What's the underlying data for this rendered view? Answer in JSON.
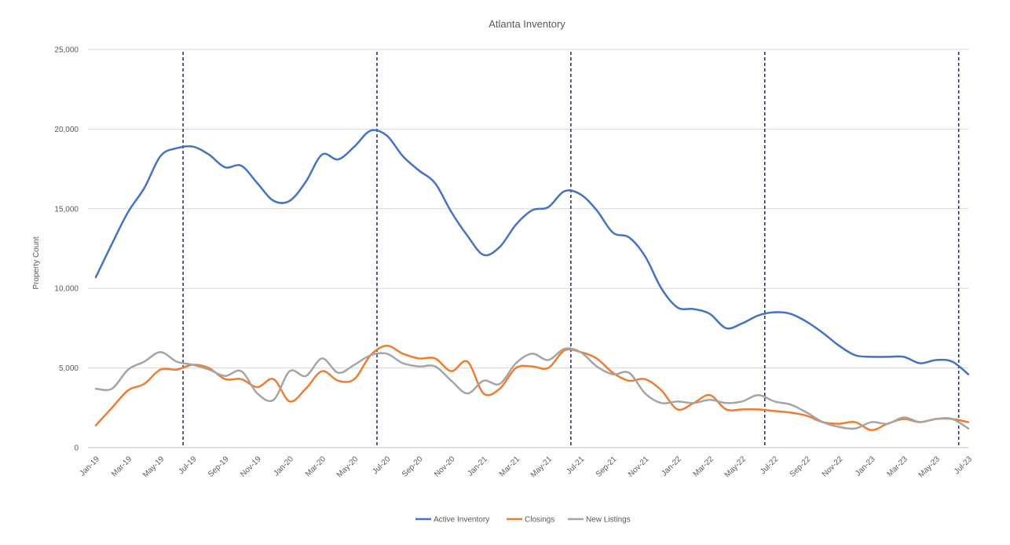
{
  "chart_data": {
    "type": "line",
    "title": "Atlanta Inventory",
    "ylabel": "Property Count",
    "xlabel": "",
    "ylim": [
      0,
      25000
    ],
    "yticks": [
      0,
      5000,
      10000,
      15000,
      20000,
      25000
    ],
    "ytick_labels": [
      "0",
      "5,000",
      "10,000",
      "15,000",
      "20,000",
      "25,000"
    ],
    "grid": true,
    "legend": "bottom",
    "x": [
      "Jan-19",
      "Feb-19",
      "Mar-19",
      "Apr-19",
      "May-19",
      "Jun-19",
      "Jul-19",
      "Aug-19",
      "Sep-19",
      "Oct-19",
      "Nov-19",
      "Dec-19",
      "Jan-20",
      "Feb-20",
      "Mar-20",
      "Apr-20",
      "May-20",
      "Jun-20",
      "Jul-20",
      "Aug-20",
      "Sep-20",
      "Oct-20",
      "Nov-20",
      "Dec-20",
      "Jan-21",
      "Feb-21",
      "Mar-21",
      "Apr-21",
      "May-21",
      "Jun-21",
      "Jul-21",
      "Aug-21",
      "Sep-21",
      "Oct-21",
      "Nov-21",
      "Dec-21",
      "Jan-22",
      "Feb-22",
      "Mar-22",
      "Apr-22",
      "May-22",
      "Jun-22",
      "Jul-22",
      "Aug-22",
      "Sep-22",
      "Oct-22",
      "Nov-22",
      "Dec-22",
      "Jan-23",
      "Feb-23",
      "Mar-23",
      "Apr-23",
      "May-23",
      "Jun-23",
      "Jul-23"
    ],
    "xtick_labels": [
      "Jan-19",
      "Mar-19",
      "May-19",
      "Jul-19",
      "Sep-19",
      "Nov-19",
      "Jan-20",
      "Mar-20",
      "May-20",
      "Jul-20",
      "Sep-20",
      "Nov-20",
      "Jan-21",
      "Mar-21",
      "May-21",
      "Jul-21",
      "Sep-21",
      "Nov-21",
      "Jan-22",
      "Mar-22",
      "May-22",
      "Jul-22",
      "Sep-22",
      "Nov-22",
      "Jan-23",
      "Mar-23",
      "May-23",
      "Jul-23"
    ],
    "vlines": [
      "Jun-19",
      "Jun-20",
      "Jun-21",
      "Jun-22",
      "Jun-23"
    ],
    "series": [
      {
        "name": "Active Inventory",
        "color": "#4472C4",
        "values": [
          10700,
          12800,
          14800,
          16300,
          18300,
          18800,
          18900,
          18400,
          17600,
          17700,
          16600,
          15500,
          15500,
          16700,
          18400,
          18100,
          18900,
          19900,
          19600,
          18300,
          17400,
          16600,
          14800,
          13300,
          12100,
          12600,
          14000,
          14900,
          15100,
          16100,
          15900,
          14900,
          13500,
          13200,
          12000,
          10000,
          8800,
          8700,
          8400,
          7500,
          7800,
          8300,
          8500,
          8400,
          7900,
          7200,
          6400,
          5800,
          5700,
          5700,
          5700,
          5300,
          5500,
          5400,
          4600
        ]
      },
      {
        "name": "Closings",
        "color": "#ED7D31",
        "values": [
          1400,
          2500,
          3600,
          4000,
          4900,
          4900,
          5200,
          5000,
          4300,
          4300,
          3800,
          4300,
          2900,
          3700,
          4800,
          4200,
          4300,
          5800,
          6400,
          5900,
          5600,
          5600,
          4800,
          5400,
          3400,
          3700,
          5000,
          5100,
          5000,
          6100,
          6000,
          5600,
          4700,
          4200,
          4300,
          3600,
          2400,
          2800,
          3300,
          2400,
          2400,
          2400,
          2300,
          2200,
          2000,
          1600,
          1500,
          1600,
          1100,
          1500,
          1800,
          1600,
          1800,
          1800,
          1600
        ]
      },
      {
        "name": "New Listings",
        "color": "#A5A5A5",
        "values": [
          3700,
          3700,
          4900,
          5400,
          6000,
          5400,
          5200,
          4900,
          4500,
          4800,
          3400,
          3000,
          4800,
          4500,
          5600,
          4700,
          5200,
          5800,
          5900,
          5300,
          5100,
          5100,
          4200,
          3400,
          4200,
          4000,
          5300,
          5900,
          5500,
          6200,
          6000,
          5100,
          4600,
          4700,
          3400,
          2800,
          2900,
          2800,
          3000,
          2800,
          2900,
          3300,
          2900,
          2700,
          2200,
          1600,
          1300,
          1200,
          1600,
          1500,
          1900,
          1600,
          1800,
          1800,
          1200
        ]
      }
    ]
  }
}
